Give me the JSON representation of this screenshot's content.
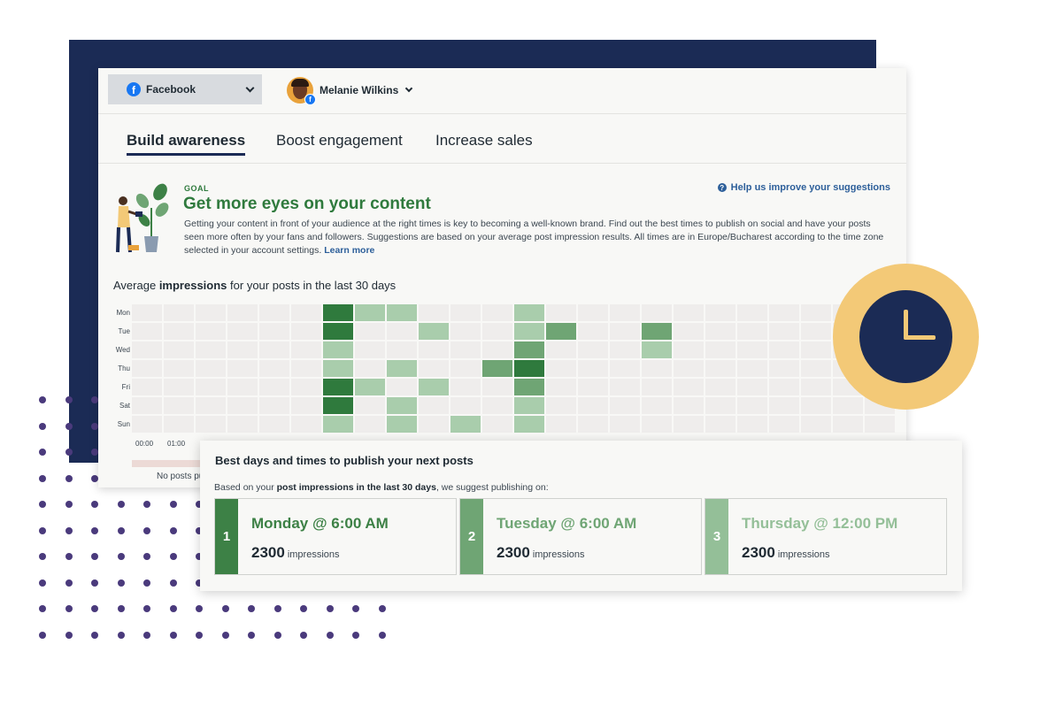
{
  "colors": {
    "navy": "#1b2b55",
    "green_dark": "#2f7a3d",
    "green_mid": "#6fa574",
    "green_light": "#a9cdac",
    "cell_empty": "#efedec",
    "clock_yellow": "#f3c977",
    "link_blue": "#2d5f9a"
  },
  "header": {
    "network": {
      "label": "Facebook",
      "icon": "facebook-icon"
    },
    "profile": {
      "name": "Melanie Wilkins"
    }
  },
  "tabs": [
    {
      "label": "Build awareness",
      "active": true
    },
    {
      "label": "Boost engagement",
      "active": false
    },
    {
      "label": "Increase sales",
      "active": false
    }
  ],
  "goal": {
    "label": "GOAL",
    "title": "Get more eyes on your content",
    "description": "Getting your content in front of your audience at the right times is key to becoming a well-known brand. Find out the best times to publish on social and have your posts seen more often by your fans and followers. Suggestions are based on your average post impression results. All times are in Europe/Bucharest according to the time zone selected in your account settings.",
    "learn_more": "Learn more",
    "help_link": "Help us improve your suggestions"
  },
  "heatmap": {
    "title_prefix": "Average",
    "title_bold": "impressions",
    "title_suffix": "for your posts in the last 30 days",
    "days": [
      "Mon",
      "Tue",
      "Wed",
      "Thu",
      "Fri",
      "Sat",
      "Sun"
    ],
    "hour_labels": [
      "00:00",
      "01:00"
    ],
    "no_posts_text": "No posts pu",
    "levels_note": "0 = no data, 1 = light, 2 = medium, 3 = dark",
    "matrix": [
      [
        0,
        0,
        0,
        0,
        0,
        0,
        3,
        1,
        1,
        0,
        0,
        0,
        1,
        0,
        0,
        0,
        0,
        0,
        0,
        0,
        0,
        0,
        0,
        0
      ],
      [
        0,
        0,
        0,
        0,
        0,
        0,
        3,
        0,
        0,
        1,
        0,
        0,
        1,
        2,
        0,
        0,
        2,
        0,
        0,
        0,
        0,
        0,
        0,
        0
      ],
      [
        0,
        0,
        0,
        0,
        0,
        0,
        1,
        0,
        0,
        0,
        0,
        0,
        2,
        0,
        0,
        0,
        1,
        0,
        0,
        0,
        0,
        0,
        0,
        0
      ],
      [
        0,
        0,
        0,
        0,
        0,
        0,
        1,
        0,
        1,
        0,
        0,
        2,
        3,
        0,
        0,
        0,
        0,
        0,
        0,
        0,
        0,
        0,
        0,
        0
      ],
      [
        0,
        0,
        0,
        0,
        0,
        0,
        3,
        1,
        0,
        1,
        0,
        0,
        2,
        0,
        0,
        0,
        0,
        0,
        0,
        0,
        0,
        0,
        0,
        0
      ],
      [
        0,
        0,
        0,
        0,
        0,
        0,
        3,
        0,
        1,
        0,
        0,
        0,
        1,
        0,
        0,
        0,
        0,
        0,
        0,
        0,
        0,
        0,
        0,
        0
      ],
      [
        0,
        0,
        0,
        0,
        0,
        0,
        1,
        0,
        1,
        0,
        1,
        0,
        1,
        0,
        0,
        0,
        0,
        0,
        0,
        0,
        0,
        0,
        0,
        0
      ]
    ]
  },
  "best_times": {
    "title": "Best days and times to publish your next posts",
    "desc_prefix": "Based on your",
    "desc_bold": "post impressions in the last 30 days",
    "desc_suffix": ", we suggest publishing on:",
    "slots": [
      {
        "rank": "1",
        "when": "Monday  @ 6:00 AM",
        "impressions": "2300",
        "impressions_label": "impressions",
        "color": "#3d8146"
      },
      {
        "rank": "2",
        "when": "Tuesday  @ 6:00 AM",
        "impressions": "2300",
        "impressions_label": "impressions",
        "color": "#6fa574"
      },
      {
        "rank": "3",
        "when": "Thursday  @ 12:00 PM",
        "impressions": "2300",
        "impressions_label": "impressions",
        "color": "#94bf98"
      }
    ]
  },
  "decorations": {
    "clock": "clock-icon",
    "illustration": "watering-plant-illustration"
  }
}
